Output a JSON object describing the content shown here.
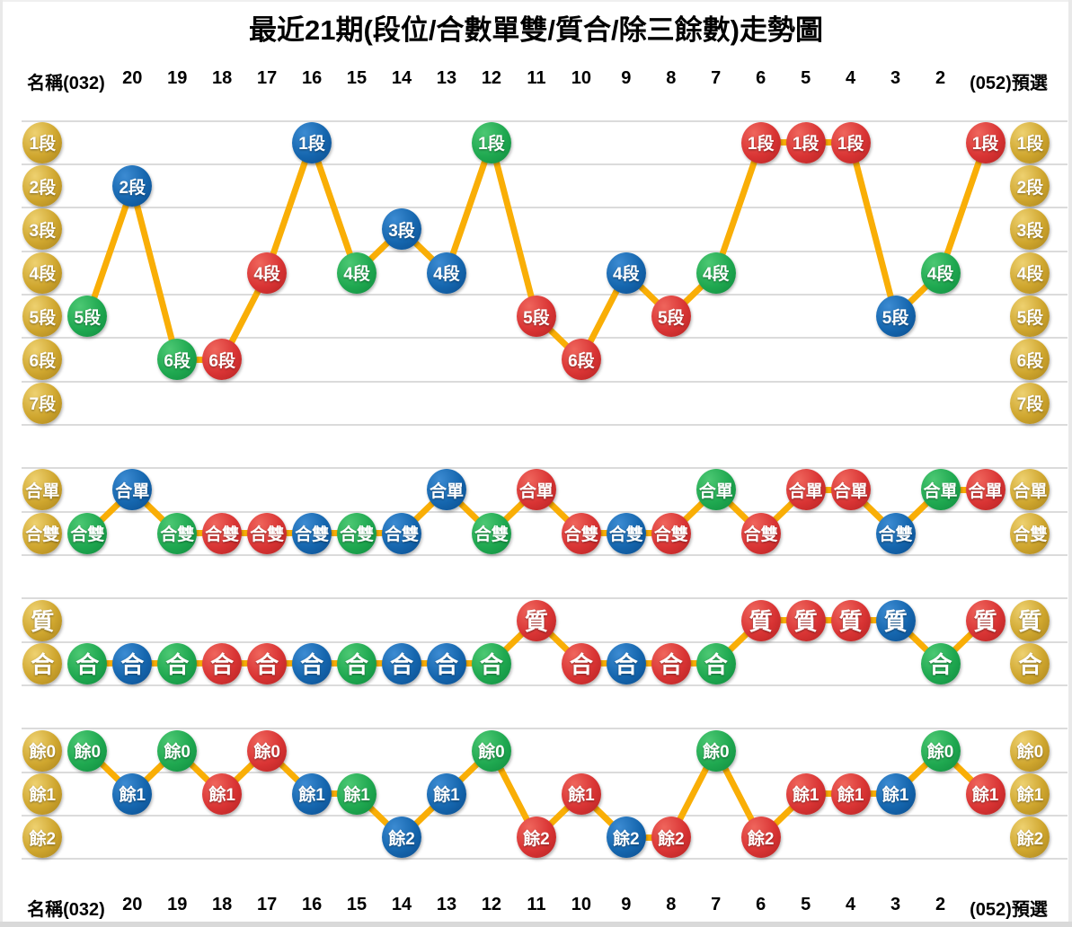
{
  "title": "最近21期(段位/合數單雙/質合/除三餘數)走勢圖",
  "header": {
    "left_label": "名稱(032)",
    "periods": [
      "20",
      "19",
      "18",
      "17",
      "16",
      "15",
      "14",
      "13",
      "12",
      "11",
      "10",
      "9",
      "8",
      "7",
      "6",
      "5",
      "4",
      "3",
      "2"
    ],
    "right_label": "(052)預選"
  },
  "footer": {
    "left_label": "名稱(032)",
    "periods": [
      "20",
      "19",
      "18",
      "17",
      "16",
      "15",
      "14",
      "13",
      "12",
      "11",
      "10",
      "9",
      "8",
      "7",
      "6",
      "5",
      "4",
      "3",
      "2"
    ],
    "right_label": "(052)預選"
  },
  "colors": {
    "gold": {
      "light": "#eed170",
      "base": "#cfa62e",
      "dark": "#a8821c"
    },
    "green": {
      "light": "#4cc873",
      "base": "#1fa850",
      "dark": "#108a3e"
    },
    "blue": {
      "light": "#3c8bd2",
      "base": "#1566ae",
      "dark": "#0b4c8c"
    },
    "red": {
      "light": "#ef655c",
      "base": "#d93434",
      "dark": "#b32222"
    },
    "line": "#f9ae06",
    "grid": "#dbdbdb",
    "circle_text": "#ffffff",
    "title_text": "#000000"
  },
  "chart_data": {
    "type": "line",
    "categories": [
      "(032)",
      "20",
      "19",
      "18",
      "17",
      "16",
      "15",
      "14",
      "13",
      "12",
      "11",
      "10",
      "9",
      "8",
      "7",
      "6",
      "5",
      "4",
      "3",
      "2",
      "(052)"
    ],
    "column_colors": [
      "green",
      "blue",
      "green",
      "red",
      "red",
      "blue",
      "green",
      "blue",
      "blue",
      "green",
      "red",
      "red",
      "blue",
      "red",
      "green",
      "red",
      "red",
      "red",
      "blue",
      "green",
      "red"
    ],
    "sections": [
      {
        "name": "段位",
        "row_labels": [
          "1段",
          "2段",
          "3段",
          "4段",
          "5段",
          "6段",
          "7段"
        ],
        "values": [
          "5段",
          "2段",
          "6段",
          "6段",
          "4段",
          "1段",
          "4段",
          "3段",
          "4段",
          "1段",
          "5段",
          "6段",
          "4段",
          "5段",
          "4段",
          "1段",
          "1段",
          "1段",
          "5段",
          "4段",
          "1段"
        ]
      },
      {
        "name": "合數單雙",
        "row_labels": [
          "合單",
          "合雙"
        ],
        "values": [
          "合雙",
          "合單",
          "合雙",
          "合雙",
          "合雙",
          "合雙",
          "合雙",
          "合雙",
          "合單",
          "合雙",
          "合單",
          "合雙",
          "合雙",
          "合雙",
          "合單",
          "合雙",
          "合單",
          "合單",
          "合雙",
          "合單",
          "合單"
        ]
      },
      {
        "name": "質合",
        "row_labels": [
          "質",
          "合"
        ],
        "values": [
          "合",
          "合",
          "合",
          "合",
          "合",
          "合",
          "合",
          "合",
          "合",
          "合",
          "質",
          "合",
          "合",
          "合",
          "合",
          "質",
          "質",
          "質",
          "質",
          "合",
          "質"
        ]
      },
      {
        "name": "除三餘數",
        "row_labels": [
          "餘0",
          "餘1",
          "餘2"
        ],
        "values": [
          "餘0",
          "餘1",
          "餘0",
          "餘1",
          "餘0",
          "餘1",
          "餘1",
          "餘2",
          "餘1",
          "餘0",
          "餘2",
          "餘1",
          "餘2",
          "餘2",
          "餘0",
          "餘2",
          "餘1",
          "餘1",
          "餘1",
          "餘0",
          "餘1"
        ]
      }
    ]
  }
}
